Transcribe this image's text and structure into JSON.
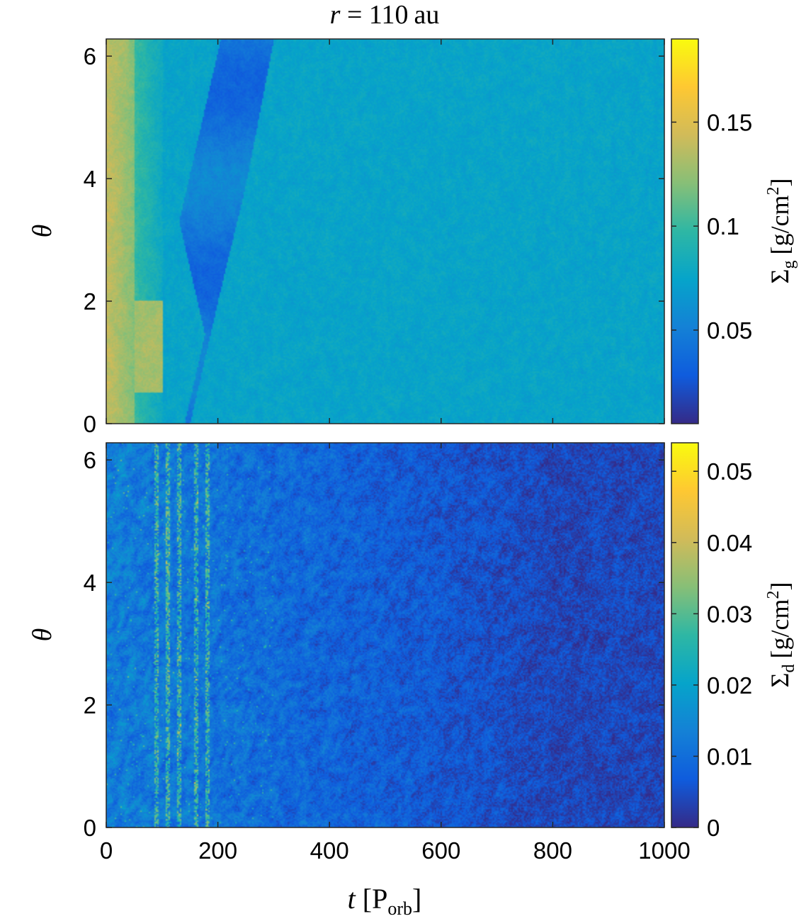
{
  "chart_data": [
    {
      "type": "heatmap",
      "title": "r = 110 au",
      "title_parts": {
        "var": "r",
        "eq": " = ",
        "value": "110",
        "unit": "au"
      },
      "xlabel": "",
      "ylabel": "θ",
      "xlim": [
        0,
        1000
      ],
      "ylim": [
        0,
        6.28
      ],
      "x_ticks": [
        "0",
        "200",
        "400",
        "600",
        "800",
        "1000"
      ],
      "x_tick_values": [
        0,
        200,
        400,
        600,
        800,
        1000
      ],
      "x_ticks_shown": false,
      "y_ticks": [
        "0",
        "2",
        "4",
        "6"
      ],
      "y_tick_values": [
        0,
        2,
        4,
        6
      ],
      "colorbar": {
        "label": "Σg [g/cm²]",
        "label_parts": {
          "sym": "Σ",
          "sub": "g",
          "unit": "[g/cm",
          "sup": "2",
          "close": "]"
        },
        "range": [
          0.005,
          0.19
        ],
        "ticks": [
          "0.05",
          "0.1",
          "0.15"
        ],
        "tick_values": [
          0.05,
          0.1,
          0.15
        ],
        "colormap": "parula"
      },
      "field_description": {
        "background": 0.075,
        "early_bright_band": {
          "t": [
            0,
            50
          ],
          "value": 0.14
        },
        "bright_patch": {
          "t": [
            50,
            100
          ],
          "theta": [
            0.5,
            2.0
          ],
          "value": 0.13
        },
        "dark_arc_edges": [
          [
            300,
            6.28
          ],
          [
            250,
            3.9
          ],
          [
            205,
            2.2
          ],
          [
            150,
            0
          ]
        ],
        "dark_arc_apex": [
          130,
          3.3
        ],
        "dark_arc_value": 0.045
      }
    },
    {
      "type": "heatmap",
      "title": "",
      "xlabel": "t [Porb]",
      "xlabel_parts": {
        "var": "t",
        "open": "[P",
        "sub": "orb",
        "close": "]"
      },
      "ylabel": "θ",
      "xlim": [
        0,
        1000
      ],
      "ylim": [
        0,
        6.28
      ],
      "x_ticks": [
        "0",
        "200",
        "400",
        "600",
        "800",
        "1000"
      ],
      "x_tick_values": [
        0,
        200,
        400,
        600,
        800,
        1000
      ],
      "y_ticks": [
        "0",
        "2",
        "4",
        "6"
      ],
      "y_tick_values": [
        0,
        2,
        4,
        6
      ],
      "colorbar": {
        "label": "Σd [g/cm²]",
        "label_parts": {
          "sym": "Σ",
          "sub": "d",
          "unit": "[g/cm",
          "sup": "2",
          "close": "]"
        },
        "range": [
          0,
          0.054
        ],
        "ticks": [
          "0",
          "0.01",
          "0.02",
          "0.03",
          "0.04",
          "0.05"
        ],
        "tick_values": [
          0,
          0.01,
          0.02,
          0.03,
          0.04,
          0.05
        ],
        "colormap": "parula"
      },
      "field_description": {
        "early_value": 0.013,
        "late_value": 0.004,
        "bright_streaks_t": [
          90,
          110,
          130,
          160,
          180
        ]
      }
    }
  ]
}
